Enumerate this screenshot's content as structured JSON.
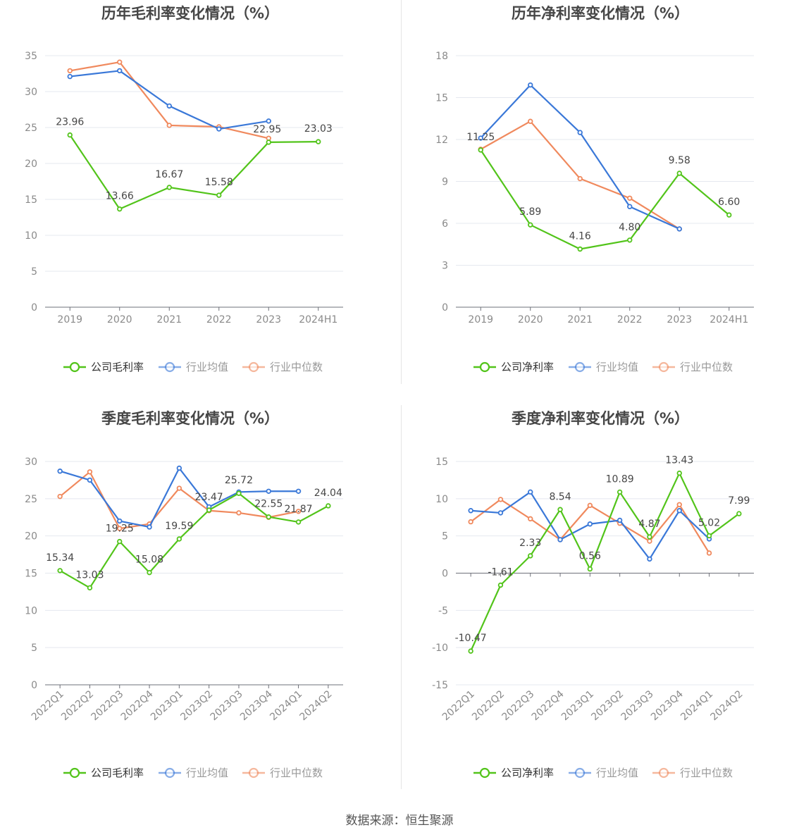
{
  "colors": {
    "company": "#52c41a",
    "avg": "#3a78d8",
    "median": "#f0895d",
    "grid": "#e5e8ef",
    "axis": "#6e7079",
    "tick": "#8a8a8a",
    "title": "#464646",
    "label": "#464646"
  },
  "legend": {
    "avg": "行业均值",
    "median": "行业中位数"
  },
  "source": "数据来源：恒生聚源",
  "chart_data": [
    {
      "type": "line",
      "title": "历年毛利率变化情况（%）",
      "categories": [
        "2019",
        "2020",
        "2021",
        "2022",
        "2023",
        "2024H1"
      ],
      "ylim": [
        0,
        35
      ],
      "yticks": [
        0,
        5,
        10,
        15,
        20,
        25,
        30,
        35
      ],
      "grid": true,
      "legend_position": "bottom",
      "series": [
        {
          "name": "公司毛利率",
          "role": "company",
          "labeled": true,
          "values": [
            23.96,
            13.66,
            16.67,
            15.58,
            22.95,
            23.03
          ]
        },
        {
          "name": "行业均值",
          "role": "avg",
          "values": [
            32.1,
            32.9,
            28.0,
            24.8,
            25.9,
            null
          ]
        },
        {
          "name": "行业中位数",
          "role": "median",
          "values": [
            32.9,
            34.1,
            25.3,
            25.1,
            23.5,
            null
          ]
        }
      ],
      "labels": [
        "23.96",
        "13.66",
        "16.67",
        "15.58",
        "22.95",
        "23.03"
      ]
    },
    {
      "type": "line",
      "title": "历年净利率变化情况（%）",
      "categories": [
        "2019",
        "2020",
        "2021",
        "2022",
        "2023",
        "2024H1"
      ],
      "ylim": [
        0,
        18
      ],
      "yticks": [
        0,
        3,
        6,
        9,
        12,
        15,
        18
      ],
      "grid": true,
      "legend_position": "bottom",
      "series": [
        {
          "name": "公司净利率",
          "role": "company",
          "labeled": true,
          "values": [
            11.25,
            5.89,
            4.16,
            4.8,
            9.58,
            6.6
          ]
        },
        {
          "name": "行业均值",
          "role": "avg",
          "values": [
            12.1,
            15.9,
            12.5,
            7.2,
            5.6,
            null
          ]
        },
        {
          "name": "行业中位数",
          "role": "median",
          "values": [
            11.3,
            13.3,
            9.2,
            7.8,
            5.6,
            null
          ]
        }
      ],
      "labels": [
        "11.25",
        "5.89",
        "4.16",
        "4.80",
        "9.58",
        "6.60"
      ]
    },
    {
      "type": "line",
      "title": "季度毛利率变化情况（%）",
      "categories": [
        "2022Q1",
        "2022Q2",
        "2022Q3",
        "2022Q4",
        "2023Q1",
        "2023Q2",
        "2023Q3",
        "2023Q4",
        "2024Q1",
        "2024Q2"
      ],
      "ylim": [
        0,
        30
      ],
      "yticks": [
        0,
        5,
        10,
        15,
        20,
        25,
        30
      ],
      "grid": true,
      "legend_position": "bottom",
      "rotated_categories": true,
      "series": [
        {
          "name": "公司毛利率",
          "role": "company",
          "labeled": true,
          "values": [
            15.34,
            13.03,
            19.25,
            15.08,
            19.59,
            23.47,
            25.72,
            22.55,
            21.87,
            24.04
          ]
        },
        {
          "name": "行业均值",
          "role": "avg",
          "values": [
            28.7,
            27.5,
            22.0,
            21.2,
            29.1,
            23.9,
            25.9,
            26.0,
            26.0,
            null
          ]
        },
        {
          "name": "行业中位数",
          "role": "median",
          "values": [
            25.3,
            28.6,
            21.0,
            21.6,
            26.4,
            23.4,
            23.1,
            22.5,
            23.3,
            null
          ]
        }
      ],
      "labels": [
        "15.34",
        "13.03",
        "19.25",
        "15.08",
        "19.59",
        "23.47",
        "25.72",
        "22.55",
        "21.87",
        "24.04"
      ]
    },
    {
      "type": "line",
      "title": "季度净利率变化情况（%）",
      "categories": [
        "2022Q1",
        "2022Q2",
        "2022Q3",
        "2022Q4",
        "2023Q1",
        "2023Q2",
        "2023Q3",
        "2023Q4",
        "2024Q1",
        "2024Q2"
      ],
      "ylim": [
        -15,
        15
      ],
      "yticks": [
        -15,
        -10,
        -5,
        0,
        5,
        10,
        15
      ],
      "grid": true,
      "legend_position": "bottom",
      "rotated_categories": true,
      "series": [
        {
          "name": "公司净利率",
          "role": "company",
          "labeled": true,
          "values": [
            -10.47,
            -1.61,
            2.33,
            8.54,
            0.56,
            10.89,
            4.87,
            13.43,
            5.02,
            7.99
          ]
        },
        {
          "name": "行业均值",
          "role": "avg",
          "values": [
            8.4,
            8.1,
            10.9,
            4.5,
            6.6,
            7.1,
            1.9,
            8.4,
            4.6,
            null
          ]
        },
        {
          "name": "行业中位数",
          "role": "median",
          "values": [
            6.9,
            9.9,
            7.3,
            4.5,
            9.1,
            6.7,
            4.3,
            9.2,
            2.7,
            null
          ]
        }
      ],
      "labels": [
        "-10.47",
        "-1.61",
        "2.33",
        "8.54",
        "0.56",
        "10.89",
        "4.87",
        "13.43",
        "5.02",
        "7.99"
      ]
    }
  ]
}
